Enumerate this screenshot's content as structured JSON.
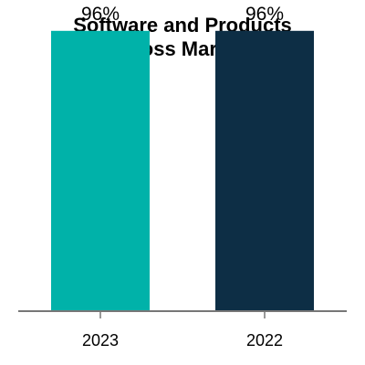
{
  "chart_data": {
    "type": "bar",
    "title_lines": [
      "Software and Products",
      "Gross Margin"
    ],
    "categories": [
      "2023",
      "2022"
    ],
    "values": [
      96,
      96
    ],
    "value_labels": [
      "96%",
      "96%"
    ],
    "colors": [
      "#00B2A9",
      "#0D2E45"
    ],
    "axis_color": "#777777",
    "ylim": [
      0,
      100
    ],
    "grid": false,
    "legend": "none"
  }
}
